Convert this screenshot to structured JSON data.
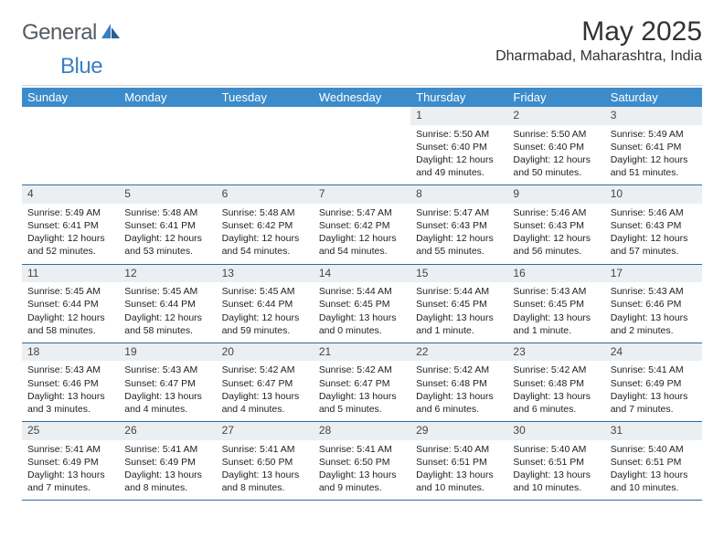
{
  "logo": {
    "general": "General",
    "blue": "Blue"
  },
  "title": "May 2025",
  "location": "Dharmabad, Maharashtra, India",
  "colors": {
    "header_bg": "#3c8ccb",
    "header_fg": "#ffffff",
    "daynum_bg": "#eceff1",
    "row_rule": "#2f6aa3",
    "logo_gray": "#555c63",
    "logo_blue": "#3a7fc4"
  },
  "weekdays": [
    "Sunday",
    "Monday",
    "Tuesday",
    "Wednesday",
    "Thursday",
    "Friday",
    "Saturday"
  ],
  "weeks": [
    [
      {
        "blank": true
      },
      {
        "blank": true
      },
      {
        "blank": true
      },
      {
        "blank": true
      },
      {
        "n": "1",
        "sr": "Sunrise: 5:50 AM",
        "ss": "Sunset: 6:40 PM",
        "dl": "Daylight: 12 hours and 49 minutes."
      },
      {
        "n": "2",
        "sr": "Sunrise: 5:50 AM",
        "ss": "Sunset: 6:40 PM",
        "dl": "Daylight: 12 hours and 50 minutes."
      },
      {
        "n": "3",
        "sr": "Sunrise: 5:49 AM",
        "ss": "Sunset: 6:41 PM",
        "dl": "Daylight: 12 hours and 51 minutes."
      }
    ],
    [
      {
        "n": "4",
        "sr": "Sunrise: 5:49 AM",
        "ss": "Sunset: 6:41 PM",
        "dl": "Daylight: 12 hours and 52 minutes."
      },
      {
        "n": "5",
        "sr": "Sunrise: 5:48 AM",
        "ss": "Sunset: 6:41 PM",
        "dl": "Daylight: 12 hours and 53 minutes."
      },
      {
        "n": "6",
        "sr": "Sunrise: 5:48 AM",
        "ss": "Sunset: 6:42 PM",
        "dl": "Daylight: 12 hours and 54 minutes."
      },
      {
        "n": "7",
        "sr": "Sunrise: 5:47 AM",
        "ss": "Sunset: 6:42 PM",
        "dl": "Daylight: 12 hours and 54 minutes."
      },
      {
        "n": "8",
        "sr": "Sunrise: 5:47 AM",
        "ss": "Sunset: 6:43 PM",
        "dl": "Daylight: 12 hours and 55 minutes."
      },
      {
        "n": "9",
        "sr": "Sunrise: 5:46 AM",
        "ss": "Sunset: 6:43 PM",
        "dl": "Daylight: 12 hours and 56 minutes."
      },
      {
        "n": "10",
        "sr": "Sunrise: 5:46 AM",
        "ss": "Sunset: 6:43 PM",
        "dl": "Daylight: 12 hours and 57 minutes."
      }
    ],
    [
      {
        "n": "11",
        "sr": "Sunrise: 5:45 AM",
        "ss": "Sunset: 6:44 PM",
        "dl": "Daylight: 12 hours and 58 minutes."
      },
      {
        "n": "12",
        "sr": "Sunrise: 5:45 AM",
        "ss": "Sunset: 6:44 PM",
        "dl": "Daylight: 12 hours and 58 minutes."
      },
      {
        "n": "13",
        "sr": "Sunrise: 5:45 AM",
        "ss": "Sunset: 6:44 PM",
        "dl": "Daylight: 12 hours and 59 minutes."
      },
      {
        "n": "14",
        "sr": "Sunrise: 5:44 AM",
        "ss": "Sunset: 6:45 PM",
        "dl": "Daylight: 13 hours and 0 minutes."
      },
      {
        "n": "15",
        "sr": "Sunrise: 5:44 AM",
        "ss": "Sunset: 6:45 PM",
        "dl": "Daylight: 13 hours and 1 minute."
      },
      {
        "n": "16",
        "sr": "Sunrise: 5:43 AM",
        "ss": "Sunset: 6:45 PM",
        "dl": "Daylight: 13 hours and 1 minute."
      },
      {
        "n": "17",
        "sr": "Sunrise: 5:43 AM",
        "ss": "Sunset: 6:46 PM",
        "dl": "Daylight: 13 hours and 2 minutes."
      }
    ],
    [
      {
        "n": "18",
        "sr": "Sunrise: 5:43 AM",
        "ss": "Sunset: 6:46 PM",
        "dl": "Daylight: 13 hours and 3 minutes."
      },
      {
        "n": "19",
        "sr": "Sunrise: 5:43 AM",
        "ss": "Sunset: 6:47 PM",
        "dl": "Daylight: 13 hours and 4 minutes."
      },
      {
        "n": "20",
        "sr": "Sunrise: 5:42 AM",
        "ss": "Sunset: 6:47 PM",
        "dl": "Daylight: 13 hours and 4 minutes."
      },
      {
        "n": "21",
        "sr": "Sunrise: 5:42 AM",
        "ss": "Sunset: 6:47 PM",
        "dl": "Daylight: 13 hours and 5 minutes."
      },
      {
        "n": "22",
        "sr": "Sunrise: 5:42 AM",
        "ss": "Sunset: 6:48 PM",
        "dl": "Daylight: 13 hours and 6 minutes."
      },
      {
        "n": "23",
        "sr": "Sunrise: 5:42 AM",
        "ss": "Sunset: 6:48 PM",
        "dl": "Daylight: 13 hours and 6 minutes."
      },
      {
        "n": "24",
        "sr": "Sunrise: 5:41 AM",
        "ss": "Sunset: 6:49 PM",
        "dl": "Daylight: 13 hours and 7 minutes."
      }
    ],
    [
      {
        "n": "25",
        "sr": "Sunrise: 5:41 AM",
        "ss": "Sunset: 6:49 PM",
        "dl": "Daylight: 13 hours and 7 minutes."
      },
      {
        "n": "26",
        "sr": "Sunrise: 5:41 AM",
        "ss": "Sunset: 6:49 PM",
        "dl": "Daylight: 13 hours and 8 minutes."
      },
      {
        "n": "27",
        "sr": "Sunrise: 5:41 AM",
        "ss": "Sunset: 6:50 PM",
        "dl": "Daylight: 13 hours and 8 minutes."
      },
      {
        "n": "28",
        "sr": "Sunrise: 5:41 AM",
        "ss": "Sunset: 6:50 PM",
        "dl": "Daylight: 13 hours and 9 minutes."
      },
      {
        "n": "29",
        "sr": "Sunrise: 5:40 AM",
        "ss": "Sunset: 6:51 PM",
        "dl": "Daylight: 13 hours and 10 minutes."
      },
      {
        "n": "30",
        "sr": "Sunrise: 5:40 AM",
        "ss": "Sunset: 6:51 PM",
        "dl": "Daylight: 13 hours and 10 minutes."
      },
      {
        "n": "31",
        "sr": "Sunrise: 5:40 AM",
        "ss": "Sunset: 6:51 PM",
        "dl": "Daylight: 13 hours and 10 minutes."
      }
    ]
  ]
}
